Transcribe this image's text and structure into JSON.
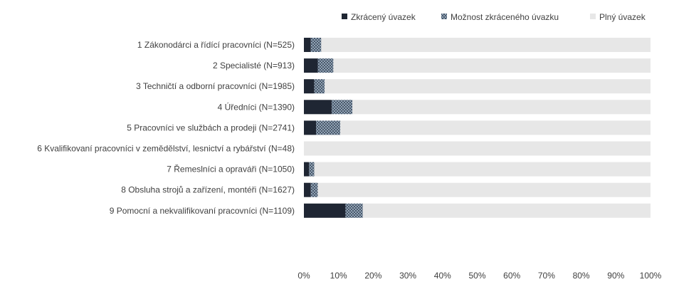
{
  "chart_data": {
    "type": "bar",
    "orientation": "horizontal",
    "stacked": true,
    "categories": [
      "1 Zákonodárci a řídící pracovníci (N=525)",
      "2 Specialisté (N=913)",
      "3 Techničtí a odborní pracovníci (N=1985)",
      "4 Úředníci (N=1390)",
      "5 Pracovníci ve službách a prodeji (N=2741)",
      "6 Kvalifikovaní pracovníci v zemědělství, lesnictví a rybářství (N=48)",
      "7 Řemeslníci a opraváři (N=1050)",
      "8 Obsluha strojů a zařízení, montéři (N=1627)",
      "9 Pomocní a nekvalifikovaní pracovníci (N=1109)"
    ],
    "series": [
      {
        "name": "Zkrácený úvazek",
        "color": "#1f2633",
        "pattern": "solid",
        "values": [
          2,
          4,
          3,
          8,
          3.5,
          0,
          1.5,
          2,
          12
        ]
      },
      {
        "name": "Možnost zkráceného úvazku",
        "color": "#8fa3b8",
        "pattern": "crosshatch",
        "values": [
          3,
          4.5,
          3,
          6,
          7,
          0,
          1.5,
          2,
          5
        ]
      },
      {
        "name": "Plný úvazek",
        "color": "#e7e7e7",
        "pattern": "solid",
        "values": [
          95,
          91.5,
          94,
          86,
          89.5,
          100,
          97,
          96,
          83
        ]
      }
    ],
    "x_ticks": [
      "0%",
      "10%",
      "20%",
      "30%",
      "40%",
      "50%",
      "60%",
      "70%",
      "80%",
      "90%",
      "100%"
    ],
    "xlim": [
      0,
      100
    ],
    "legend_position": "top-right",
    "grid": false
  }
}
